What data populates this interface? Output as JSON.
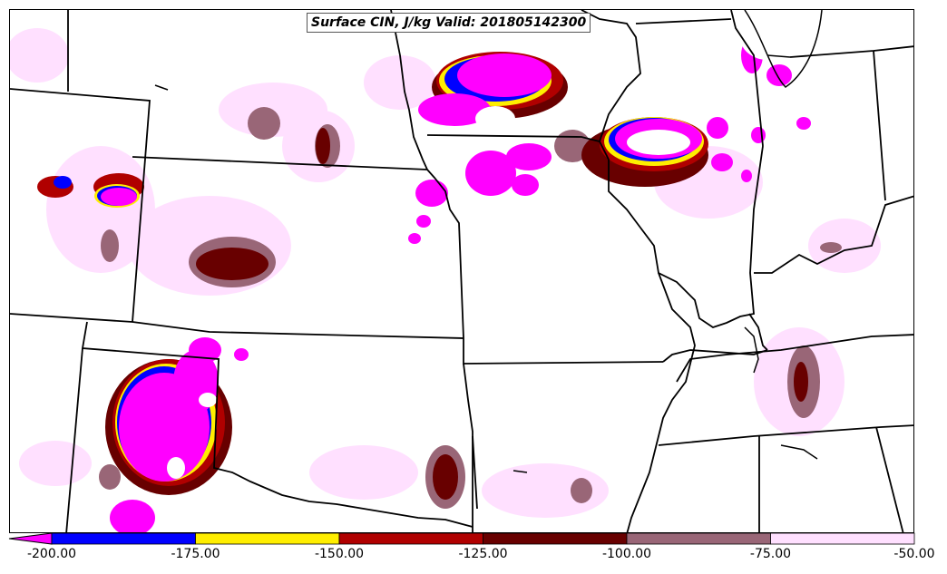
{
  "title": "Surface CIN, J/kg Valid: 201805142300",
  "colorbar": {
    "ticks": [
      "-200.00",
      "-175.00",
      "-150.00",
      "-125.00",
      "-100.00",
      "-75.00",
      "-50.00"
    ],
    "bins": [
      {
        "from": -200,
        "to": -175,
        "color": "#0000ff"
      },
      {
        "from": -175,
        "to": -150,
        "color": "#ffee00"
      },
      {
        "from": -150,
        "to": -125,
        "color": "#b00000"
      },
      {
        "from": -125,
        "to": -100,
        "color": "#680000"
      },
      {
        "from": -100,
        "to": -75,
        "color": "#996677"
      },
      {
        "from": -75,
        "to": -50,
        "color": "#ffe0ff"
      }
    ],
    "extend_low_color": "#ff00ff"
  },
  "colors": {
    "under_200": "#ff00ff",
    "bin_200_175": "#0000ff",
    "bin_175_150": "#ffee00",
    "bin_150_125": "#b00000",
    "bin_125_100": "#680000",
    "bin_100_75": "#996677",
    "bin_75_50": "#ffe0ff"
  }
}
